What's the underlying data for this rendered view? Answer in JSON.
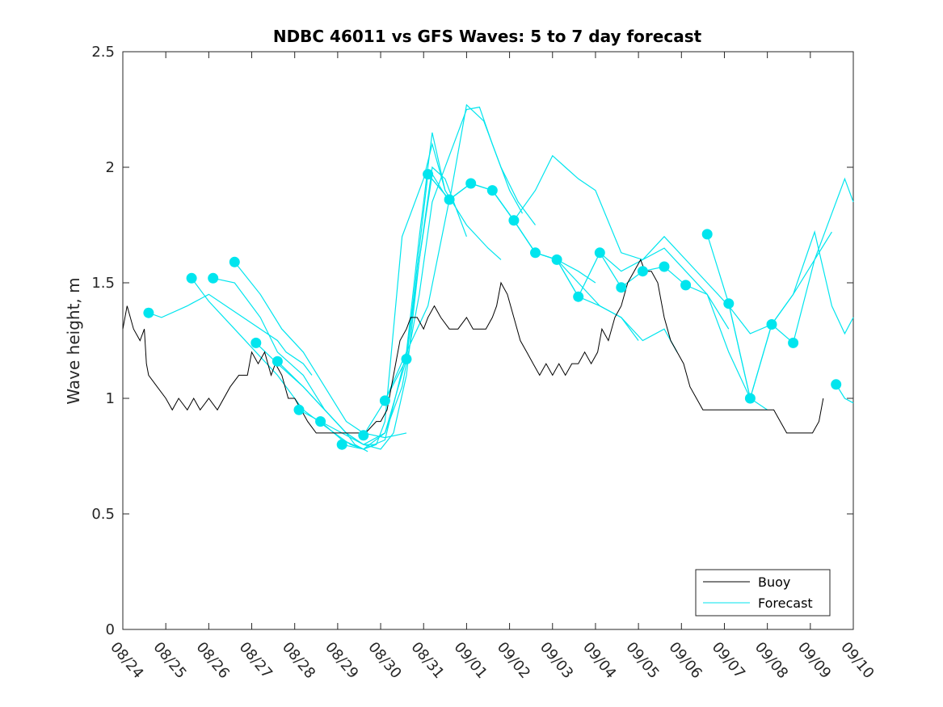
{
  "chart_data": {
    "type": "line",
    "title": "NDBC 46011 vs GFS Waves: 5 to 7 day forecast",
    "xlabel": "",
    "ylabel": "Wave height, m",
    "xlim": [
      0,
      17
    ],
    "ylim": [
      0,
      2.5
    ],
    "x_tick_labels": [
      "08/24",
      "08/25",
      "08/26",
      "08/27",
      "08/28",
      "08/29",
      "08/30",
      "08/31",
      "09/01",
      "09/02",
      "09/03",
      "09/04",
      "09/05",
      "09/06",
      "09/07",
      "09/08",
      "09/09",
      "09/10"
    ],
    "y_ticks": [
      0,
      0.5,
      1,
      1.5,
      2,
      2.5
    ],
    "y_tick_labels": [
      "0",
      "0.5",
      "1",
      "1.5",
      "2",
      "2.5"
    ],
    "legend": {
      "position": "bottom-right",
      "entries": [
        {
          "label": "Buoy",
          "color": "#000000"
        },
        {
          "label": "Forecast",
          "color": "#00e5ee"
        }
      ]
    },
    "colors": {
      "buoy": "#000000",
      "forecast": "#00e5ee",
      "marker": "#00e5ee"
    },
    "buoy": {
      "name": "Buoy",
      "x": [
        0.0,
        0.1,
        0.25,
        0.4,
        0.5,
        0.55,
        0.6,
        0.8,
        1.0,
        1.15,
        1.3,
        1.5,
        1.65,
        1.8,
        2.0,
        2.2,
        2.5,
        2.7,
        2.9,
        3.0,
        3.15,
        3.3,
        3.45,
        3.55,
        3.7,
        3.85,
        4.0,
        4.15,
        4.3,
        4.5,
        4.7,
        4.85,
        5.0,
        5.2,
        5.45,
        5.65,
        5.9,
        6.0,
        6.15,
        6.3,
        6.45,
        6.6,
        6.7,
        6.85,
        7.0,
        7.1,
        7.25,
        7.4,
        7.6,
        7.8,
        8.0,
        8.15,
        8.3,
        8.45,
        8.6,
        8.7,
        8.8,
        8.95,
        9.1,
        9.25,
        9.4,
        9.55,
        9.7,
        9.85,
        10.0,
        10.15,
        10.3,
        10.45,
        10.6,
        10.75,
        10.9,
        11.05,
        11.15,
        11.3,
        11.45,
        11.6,
        11.75,
        11.9,
        12.05,
        12.15,
        12.3,
        12.45,
        12.6,
        12.75,
        12.9,
        13.05,
        13.2,
        13.35,
        13.5,
        13.65,
        13.8,
        13.95,
        14.1,
        14.25,
        14.4,
        14.55,
        14.7,
        14.85,
        15.0,
        15.15,
        15.3,
        15.45,
        15.6,
        15.75,
        15.9,
        16.05,
        16.2,
        16.3
      ],
      "y": [
        1.3,
        1.4,
        1.3,
        1.25,
        1.3,
        1.15,
        1.1,
        1.05,
        1.0,
        0.95,
        1.0,
        0.95,
        1.0,
        0.95,
        1.0,
        0.95,
        1.05,
        1.1,
        1.1,
        1.2,
        1.15,
        1.2,
        1.1,
        1.15,
        1.1,
        1.0,
        1.0,
        0.95,
        0.9,
        0.85,
        0.85,
        0.85,
        0.85,
        0.85,
        0.85,
        0.85,
        0.9,
        0.9,
        0.95,
        1.1,
        1.25,
        1.3,
        1.35,
        1.35,
        1.3,
        1.35,
        1.4,
        1.35,
        1.3,
        1.3,
        1.35,
        1.3,
        1.3,
        1.3,
        1.35,
        1.4,
        1.5,
        1.45,
        1.35,
        1.25,
        1.2,
        1.15,
        1.1,
        1.15,
        1.1,
        1.15,
        1.1,
        1.15,
        1.15,
        1.2,
        1.15,
        1.2,
        1.3,
        1.25,
        1.35,
        1.4,
        1.5,
        1.55,
        1.6,
        1.55,
        1.55,
        1.5,
        1.35,
        1.25,
        1.2,
        1.15,
        1.05,
        1.0,
        0.95,
        0.95,
        0.95,
        0.95,
        0.95,
        0.95,
        0.95,
        0.95,
        0.95,
        0.95,
        0.95,
        0.95,
        0.9,
        0.85,
        0.85,
        0.85,
        0.85,
        0.85,
        0.9,
        1.0
      ]
    },
    "forecast_runs": [
      {
        "x": [
          0.6,
          0.9,
          1.5,
          1.6,
          2.0,
          2.8,
          3.6,
          3.8,
          4.2,
          4.4
        ],
        "y": [
          1.37,
          1.35,
          1.4,
          1.41,
          1.45,
          1.35,
          1.25,
          1.2,
          1.15,
          1.1
        ]
      },
      {
        "x": [
          1.6,
          2.0,
          2.6,
          3.1,
          3.6,
          4.2,
          4.7,
          5.0,
          5.3,
          5.6,
          5.9
        ],
        "y": [
          1.52,
          1.42,
          1.3,
          1.2,
          1.1,
          0.95,
          0.88,
          0.84,
          0.8,
          0.78,
          0.8
        ]
      },
      {
        "x": [
          2.1,
          2.6,
          3.2,
          3.6,
          4.2,
          4.7,
          5.2,
          5.4,
          5.7
        ],
        "y": [
          1.52,
          1.5,
          1.35,
          1.2,
          1.1,
          0.95,
          0.85,
          0.8,
          0.77
        ]
      },
      {
        "x": [
          2.6,
          3.2,
          3.7,
          4.2,
          4.7,
          5.2,
          5.6,
          6.1,
          6.6
        ],
        "y": [
          1.59,
          1.45,
          1.3,
          1.2,
          1.05,
          0.9,
          0.85,
          0.83,
          0.85
        ]
      },
      {
        "x": [
          3.1,
          3.6,
          4.2,
          4.7,
          5.2,
          5.6,
          5.9,
          6.1,
          6.3,
          6.5,
          6.7,
          7.0,
          7.2,
          7.5
        ],
        "y": [
          1.24,
          1.15,
          1.05,
          0.95,
          0.85,
          0.8,
          0.8,
          0.9,
          1.3,
          1.7,
          1.8,
          1.95,
          2.1,
          1.9
        ]
      },
      {
        "x": [
          3.6,
          4.2,
          4.7,
          5.2,
          5.6,
          6.0,
          6.3,
          6.6,
          6.9,
          7.2,
          7.5,
          8.0
        ],
        "y": [
          1.16,
          1.05,
          0.95,
          0.85,
          0.8,
          0.78,
          0.85,
          1.1,
          1.6,
          2.0,
          1.95,
          1.7
        ]
      },
      {
        "x": [
          4.1,
          4.6,
          5.1,
          5.6,
          6.1,
          6.6,
          6.9,
          7.2,
          7.5,
          8.0,
          8.5,
          8.8
        ],
        "y": [
          0.95,
          0.9,
          0.82,
          0.78,
          0.82,
          1.2,
          1.7,
          2.15,
          1.9,
          1.75,
          1.65,
          1.6
        ]
      },
      {
        "x": [
          4.6,
          5.1,
          5.6,
          6.1,
          6.5,
          6.9,
          7.2,
          7.6,
          8.0,
          8.3,
          8.6,
          9.0,
          9.3
        ],
        "y": [
          0.9,
          0.85,
          0.8,
          0.85,
          1.05,
          1.45,
          1.85,
          2.05,
          2.25,
          2.26,
          2.1,
          1.9,
          1.8
        ]
      },
      {
        "x": [
          5.1,
          5.6,
          6.1,
          6.6,
          6.9,
          7.2,
          7.6,
          8.0,
          8.4,
          8.8,
          9.2,
          9.6
        ],
        "y": [
          0.8,
          0.78,
          0.85,
          1.17,
          1.6,
          1.97,
          1.85,
          2.27,
          2.2,
          2.0,
          1.85,
          1.75
        ]
      },
      {
        "x": [
          5.6,
          6.1,
          6.6,
          7.1,
          7.6,
          8.1,
          8.6,
          9.1,
          9.6,
          10.1,
          10.6,
          11.0
        ],
        "y": [
          0.84,
          0.99,
          1.2,
          1.4,
          1.86,
          1.93,
          1.9,
          1.77,
          1.63,
          1.6,
          1.55,
          1.5
        ]
      },
      {
        "x": [
          6.1,
          6.6,
          7.1,
          7.6,
          8.1,
          8.6,
          9.1,
          9.6,
          10.1,
          10.6,
          11.1,
          11.6,
          12.0
        ],
        "y": [
          0.99,
          1.17,
          1.97,
          1.86,
          1.93,
          1.9,
          1.77,
          1.63,
          1.6,
          1.5,
          1.4,
          1.35,
          1.25
        ]
      },
      {
        "x": [
          7.1,
          7.6,
          8.1,
          8.6,
          9.1,
          9.6,
          10.1,
          10.6,
          11.1,
          11.6,
          12.1,
          12.6,
          12.9
        ],
        "y": [
          1.97,
          1.86,
          1.93,
          1.9,
          1.77,
          1.63,
          1.6,
          1.44,
          1.4,
          1.35,
          1.25,
          1.3,
          1.2
        ]
      },
      {
        "x": [
          8.6,
          9.1,
          9.6,
          10.1,
          10.6,
          11.1,
          11.6,
          12.1,
          12.6,
          13.1,
          13.6,
          14.1
        ],
        "y": [
          1.9,
          1.77,
          1.63,
          1.6,
          1.44,
          1.63,
          1.48,
          1.55,
          1.57,
          1.49,
          1.45,
          1.3
        ]
      },
      {
        "x": [
          9.1,
          9.6,
          10.0,
          10.3,
          10.6,
          11.0,
          11.6,
          12.1,
          12.6,
          13.1,
          13.6,
          14.1,
          14.6,
          15.0
        ],
        "y": [
          1.77,
          1.9,
          2.05,
          2.0,
          1.95,
          1.9,
          1.63,
          1.6,
          1.65,
          1.55,
          1.45,
          1.2,
          1.0,
          0.95
        ]
      },
      {
        "x": [
          11.1,
          11.6,
          12.1,
          12.6,
          13.1,
          13.6,
          14.1,
          14.6,
          15.1,
          15.6,
          16.1,
          16.5
        ],
        "y": [
          1.63,
          1.55,
          1.6,
          1.7,
          1.6,
          1.5,
          1.4,
          1.28,
          1.32,
          1.45,
          1.6,
          1.72
        ]
      },
      {
        "x": [
          13.6,
          14.1,
          14.6,
          15.1,
          15.6,
          16.1,
          16.5,
          16.8,
          17.0
        ],
        "y": [
          1.71,
          1.41,
          1.0,
          1.32,
          1.24,
          1.6,
          1.8,
          1.95,
          1.85
        ]
      },
      {
        "x": [
          14.1,
          14.6,
          15.1,
          15.6,
          16.1,
          16.5,
          16.8,
          17.0
        ],
        "y": [
          1.41,
          1.0,
          1.32,
          1.45,
          1.72,
          1.4,
          1.28,
          1.35
        ]
      },
      {
        "x": [
          16.6,
          16.8,
          17.0
        ],
        "y": [
          1.06,
          1.0,
          0.98
        ]
      }
    ],
    "forecast_points": {
      "x": [
        0.6,
        1.6,
        2.1,
        2.6,
        3.1,
        3.6,
        4.1,
        4.6,
        5.1,
        5.6,
        6.1,
        6.6,
        7.1,
        7.6,
        8.1,
        8.6,
        9.1,
        9.6,
        10.1,
        10.6,
        11.1,
        11.6,
        12.1,
        12.6,
        13.1,
        13.6,
        14.1,
        14.6,
        15.1,
        15.6,
        16.6
      ],
      "y": [
        1.37,
        1.52,
        1.52,
        1.59,
        1.24,
        1.16,
        0.95,
        0.9,
        0.8,
        0.84,
        0.99,
        1.17,
        1.97,
        1.86,
        1.93,
        1.9,
        1.77,
        1.63,
        1.6,
        1.44,
        1.63,
        1.48,
        1.55,
        1.57,
        1.49,
        1.71,
        1.41,
        1.0,
        1.32,
        1.24,
        1.06
      ]
    }
  }
}
